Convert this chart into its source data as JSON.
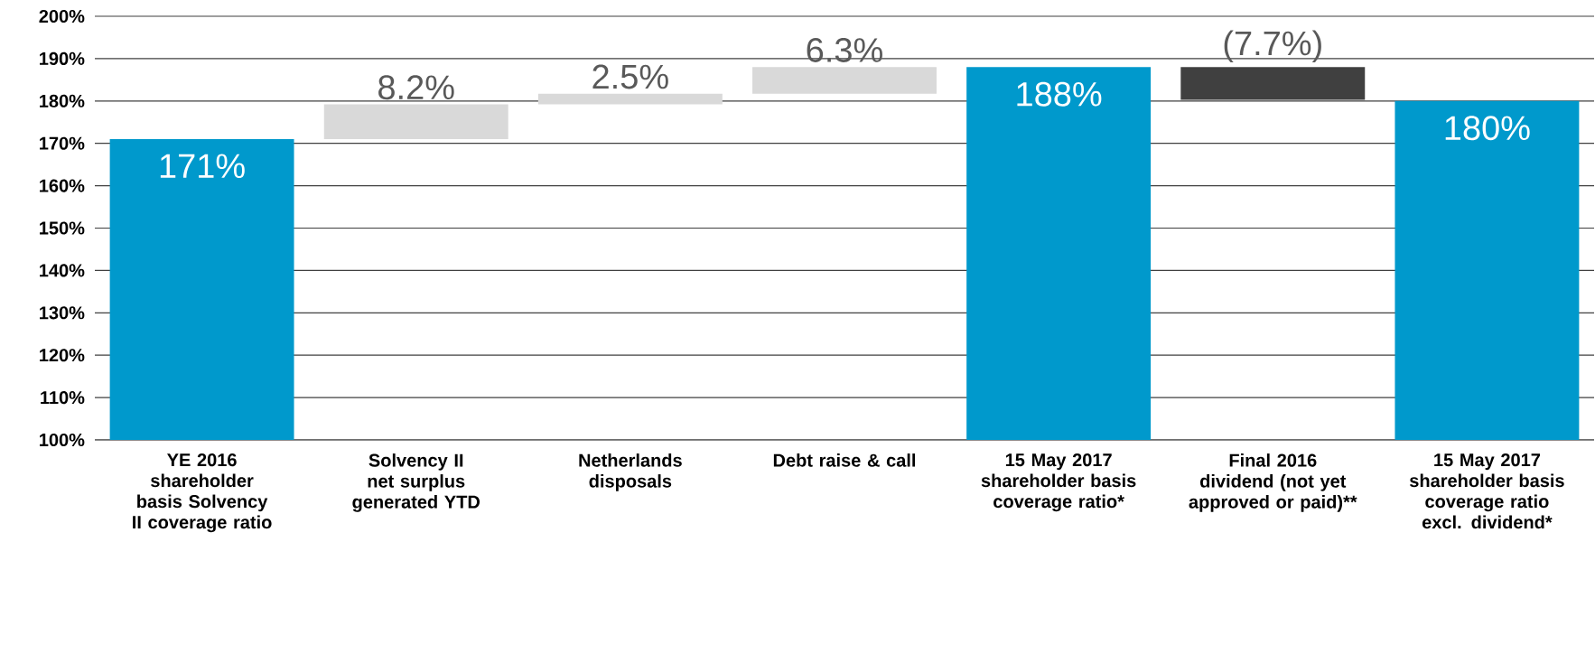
{
  "chart_data": {
    "type": "bar",
    "categories": [
      "YE 2016 shareholder basis Solvency II coverage ratio",
      "Solvency II net surplus generated YTD",
      "Netherlands disposals",
      "Debt raise & call",
      "15 May 2017 shareholder basis coverage ratio*",
      "Final 2016 dividend (not yet approved or paid)**",
      "15 May 2017 shareholder basis coverage ratio excl. dividend*"
    ],
    "values": [
      171,
      8.2,
      2.5,
      6.3,
      188,
      -7.7,
      180
    ],
    "base": [
      null,
      171,
      179.2,
      181.7,
      null,
      188,
      null
    ],
    "colors": [
      "#0099cc",
      "#d9d9d9",
      "#d9d9d9",
      "#d9d9d9",
      "#0099cc",
      "#404040",
      "#0099cc"
    ],
    "value_labels": [
      "171%",
      "8.2%",
      "2.5%",
      "6.3%",
      "188%",
      "(7.7%)",
      "180%"
    ],
    "ylim": [
      100,
      200
    ],
    "yticks": [
      {
        "value": 100,
        "label": "100%"
      },
      {
        "value": 110,
        "label": "110%"
      },
      {
        "value": 120,
        "label": "120%"
      },
      {
        "value": 130,
        "label": "130%"
      },
      {
        "value": 140,
        "label": "140%"
      },
      {
        "value": 150,
        "label": "150%"
      },
      {
        "value": 160,
        "label": "160%"
      },
      {
        "value": 170,
        "label": "170%"
      },
      {
        "value": 180,
        "label": "180%"
      },
      {
        "value": 190,
        "label": "190%"
      },
      {
        "value": 200,
        "label": "200%"
      }
    ],
    "grid": "y"
  }
}
